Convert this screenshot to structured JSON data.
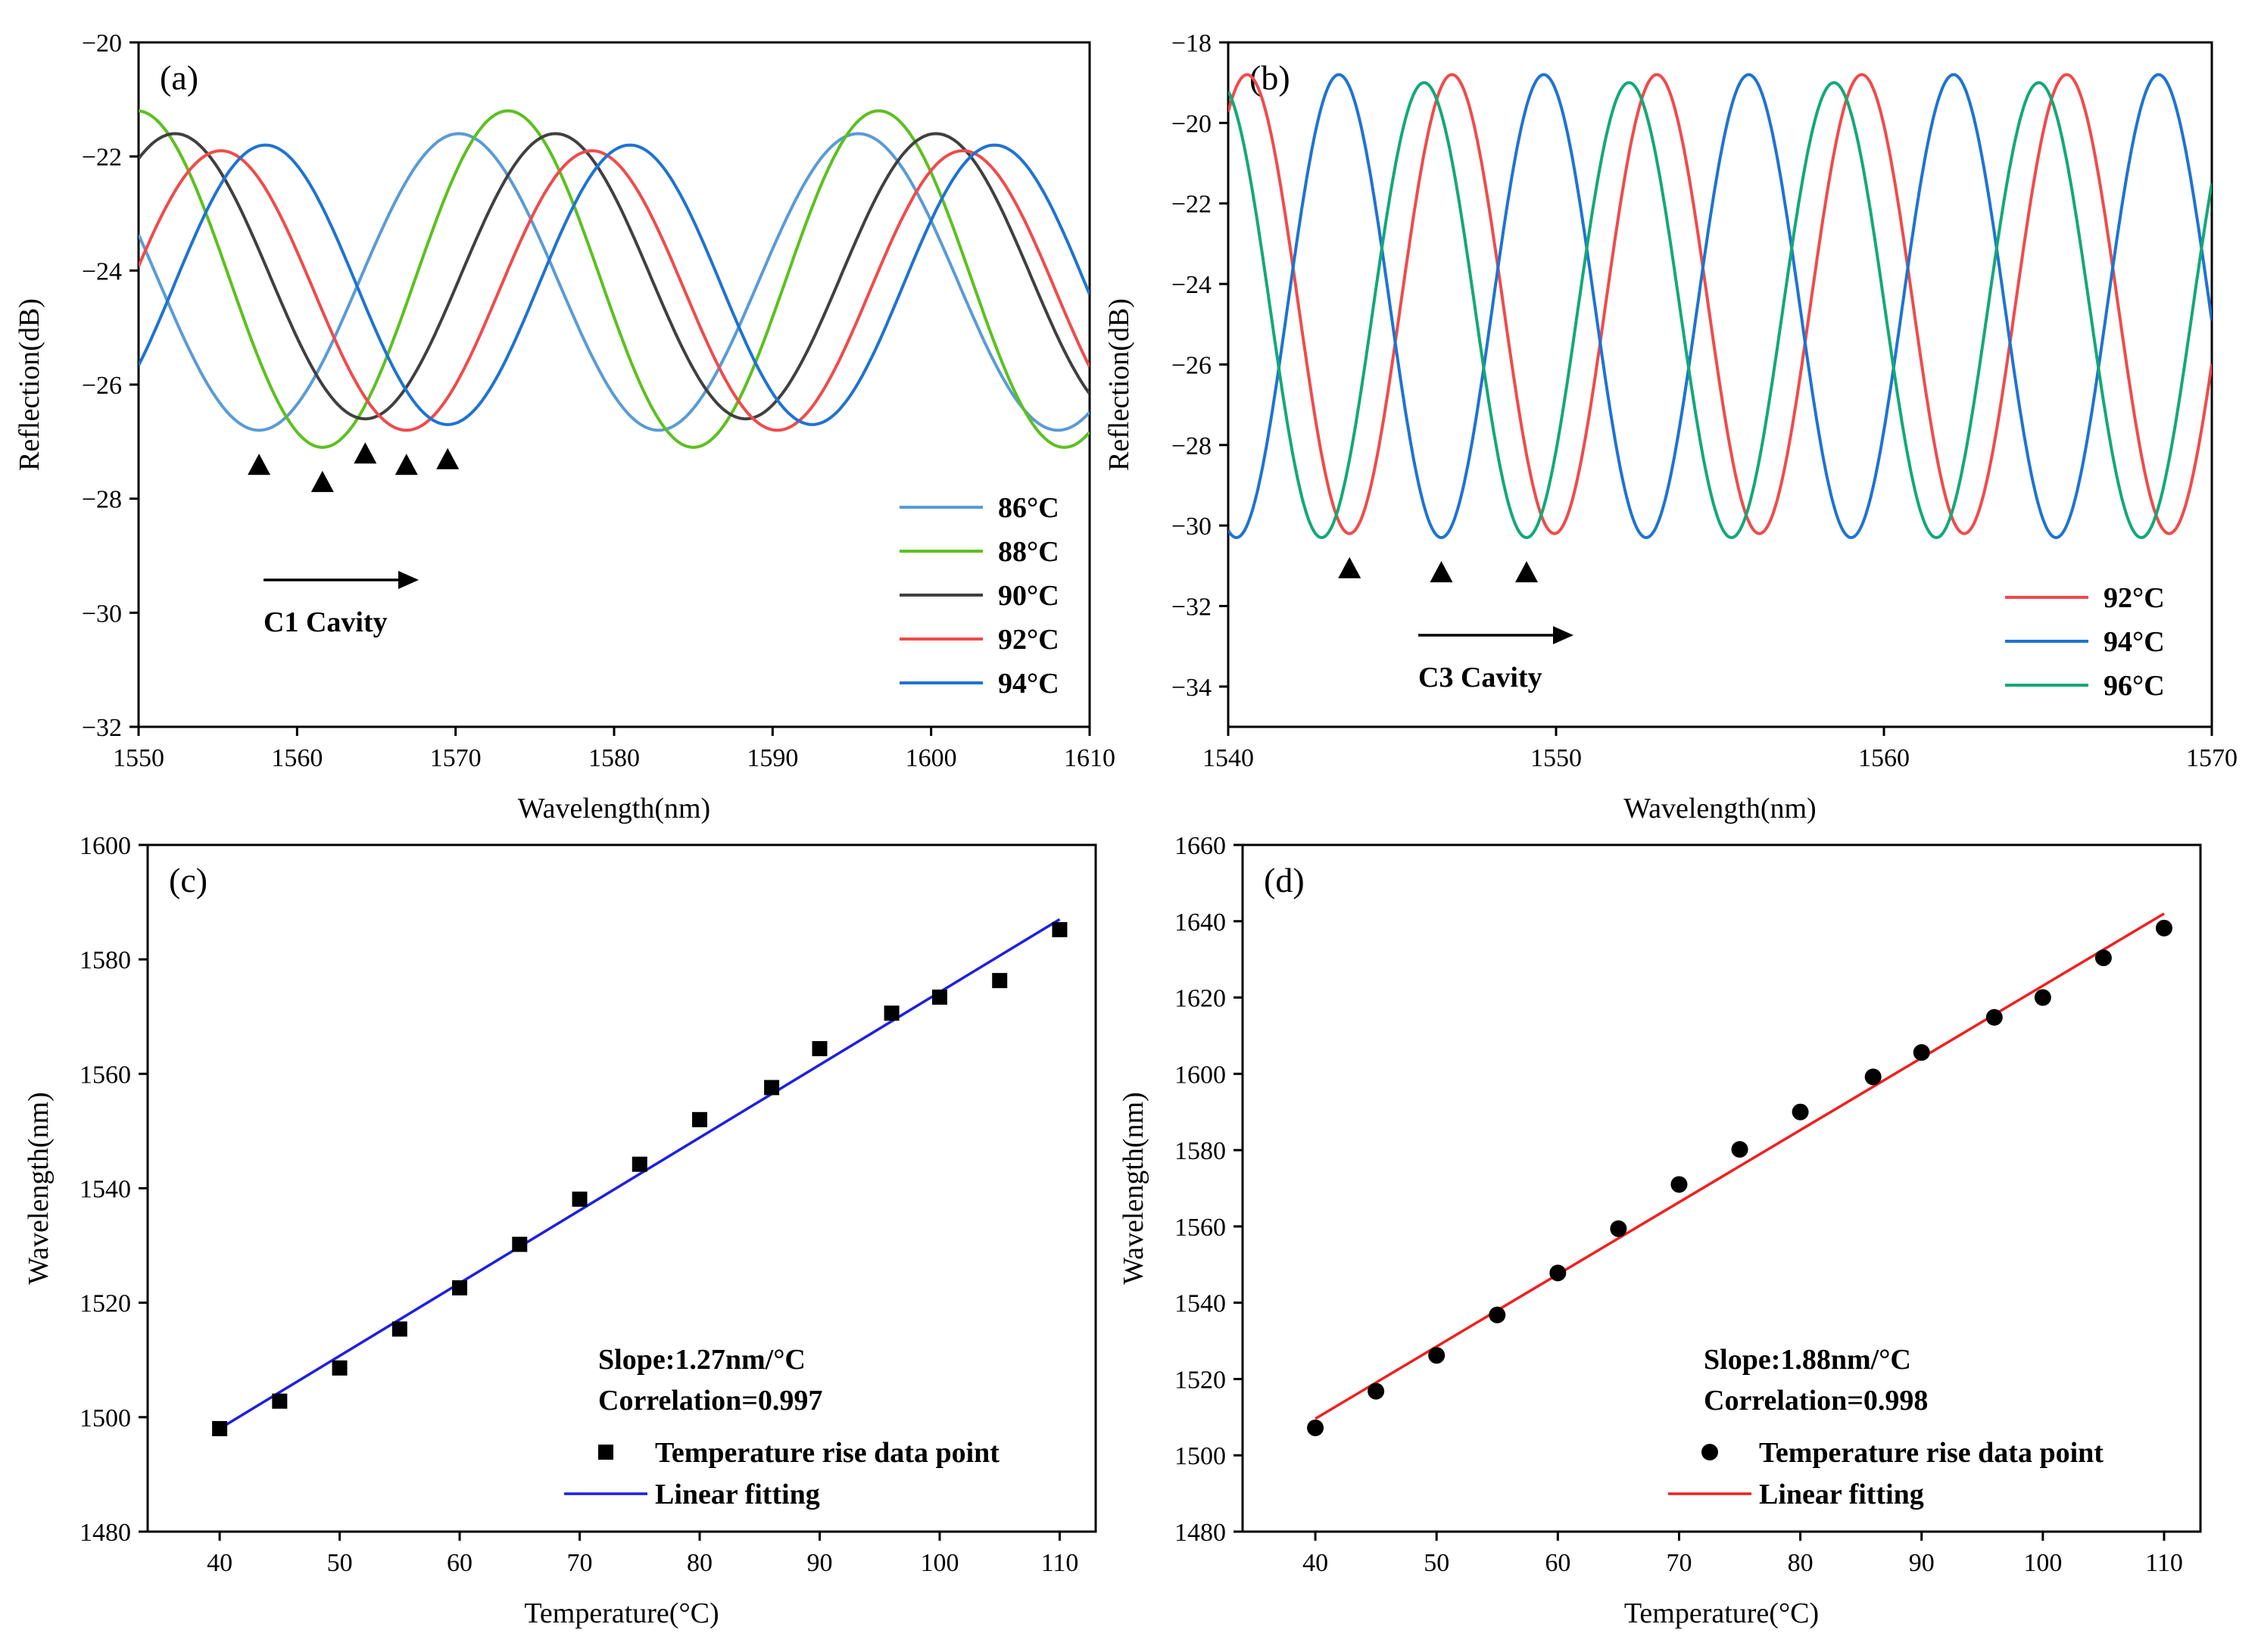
{
  "chart_data": [
    {
      "type": "line",
      "panel": "(a)",
      "xlabel": "Wavelength(nm)",
      "ylabel": "Reflection(dB)",
      "xlim": [
        1550,
        1610
      ],
      "ylim": [
        -32,
        -20
      ],
      "xticks": [
        1550,
        1560,
        1570,
        1580,
        1590,
        1600,
        1610
      ],
      "yticks": [
        -32,
        -30,
        -28,
        -26,
        -24,
        -22,
        -20
      ],
      "annotation": "C1 Cavity",
      "series": [
        {
          "name": "86°C",
          "color": "#5a9bd5",
          "period": 25.2,
          "minimum": 1557.6,
          "min_db": -26.8,
          "max_db": -21.6
        },
        {
          "name": "88°C",
          "color": "#5cc01f",
          "period": 23.4,
          "minimum": 1561.6,
          "min_db": -27.1,
          "max_db": -21.2
        },
        {
          "name": "90°C",
          "color": "#404040",
          "period": 24.0,
          "minimum": 1564.3,
          "min_db": -26.6,
          "max_db": -21.6
        },
        {
          "name": "92°C",
          "color": "#ef4b4b",
          "period": 23.4,
          "minimum": 1566.9,
          "min_db": -26.8,
          "max_db": -21.9
        },
        {
          "name": "94°C",
          "color": "#1e73d2",
          "period": 23.0,
          "minimum": 1569.5,
          "min_db": -26.7,
          "max_db": -21.8
        }
      ],
      "markers": [
        1557.6,
        1561.6,
        1564.3,
        1566.9,
        1569.5
      ]
    },
    {
      "type": "line",
      "panel": "(b)",
      "xlabel": "Wavelength(nm)",
      "ylabel": "Reflection(dB)",
      "xlim": [
        1540,
        1570
      ],
      "ylim": [
        -35,
        -18
      ],
      "xticks": [
        1540,
        1550,
        1560,
        1570
      ],
      "yticks": [
        -34,
        -32,
        -30,
        -28,
        -26,
        -24,
        -22,
        -20,
        -18
      ],
      "annotation": "C3 Cavity",
      "series": [
        {
          "name": "92°C",
          "color": "#ef4b4b",
          "period": 6.25,
          "minimum": 1543.7,
          "min_db": -30.2,
          "max_db": -18.8
        },
        {
          "name": "94°C",
          "color": "#1e73d2",
          "period": 6.25,
          "minimum": 1546.5,
          "min_db": -30.3,
          "max_db": -18.8
        },
        {
          "name": "96°C",
          "color": "#13a878",
          "period": 6.25,
          "minimum": 1549.1,
          "min_db": -30.3,
          "max_db": -19.0
        }
      ],
      "markers": [
        1543.7,
        1546.5,
        1549.1
      ]
    },
    {
      "type": "scatter",
      "panel": "(c)",
      "xlabel": "Temperature(°C)",
      "ylabel": "Wavelength(nm)",
      "xlim": [
        34,
        113
      ],
      "ylim": [
        1480,
        1600
      ],
      "xticks": [
        40,
        50,
        60,
        70,
        80,
        90,
        100,
        110
      ],
      "yticks": [
        1480,
        1500,
        1520,
        1540,
        1560,
        1580,
        1600
      ],
      "marker": "square",
      "x": [
        40,
        45,
        50,
        55,
        60,
        65,
        70,
        75,
        80,
        86,
        90,
        96,
        100,
        105,
        110
      ],
      "y": [
        1498,
        1502.8,
        1508.6,
        1515.4,
        1522.6,
        1530.2,
        1538.1,
        1544.2,
        1552,
        1557.6,
        1564.4,
        1570.6,
        1573.4,
        1576.3,
        1585.2
      ],
      "fit": {
        "x": [
          40,
          110
        ],
        "y": [
          1498,
          1587
        ],
        "color": "#1f1fe0"
      },
      "slope_text": "Slope:1.27nm/°C",
      "correlation_text": "Correlation=0.997",
      "legend": [
        "Temperature rise data point",
        "Linear fitting"
      ]
    },
    {
      "type": "scatter",
      "panel": "(d)",
      "xlabel": "Temperature(°C)",
      "ylabel": "Wavelength(nm)",
      "xlim": [
        34,
        113
      ],
      "ylim": [
        1480,
        1660
      ],
      "xticks": [
        40,
        50,
        60,
        70,
        80,
        90,
        100,
        110
      ],
      "yticks": [
        1480,
        1500,
        1520,
        1540,
        1560,
        1580,
        1600,
        1620,
        1640,
        1660
      ],
      "marker": "circle",
      "x": [
        40,
        45,
        50,
        55,
        60,
        65,
        70,
        75,
        80,
        86,
        90,
        96,
        100,
        105,
        110
      ],
      "y": [
        1507.2,
        1516.8,
        1526.2,
        1536.8,
        1547.8,
        1559.4,
        1571,
        1580.2,
        1590,
        1599.2,
        1605.6,
        1614.8,
        1620,
        1630.4,
        1638.2
      ],
      "fit": {
        "x": [
          40,
          110
        ],
        "y": [
          1509.6,
          1642
        ],
        "color": "#ef2020"
      },
      "slope_text": "Slope:1.88nm/°C",
      "correlation_text": "Correlation=0.998",
      "legend": [
        "Temperature rise data point",
        "Linear fitting"
      ]
    }
  ]
}
